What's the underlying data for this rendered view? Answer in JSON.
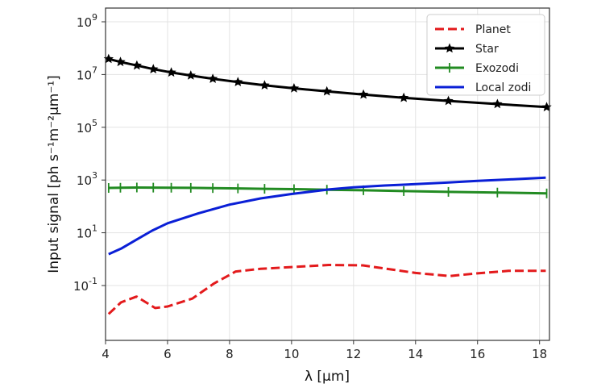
{
  "chart_data": {
    "type": "line",
    "title": "",
    "xlabel": "λ [μm]",
    "ylabel": "Input signal [ph s⁻¹m⁻²μm⁻¹]",
    "xlim": [
      4,
      18.32
    ],
    "ylim_log10": [
      -3.08,
      9.52
    ],
    "yscale": "log",
    "grid": true,
    "legend_position": "top-right",
    "x_ticks": [
      "4",
      "6",
      "8",
      "10",
      "12",
      "14",
      "16",
      "18"
    ],
    "x_tick_values": [
      4,
      6,
      8,
      10,
      12,
      14,
      16,
      18
    ],
    "y_tick_exponents": [
      "9",
      "7",
      "5",
      "3",
      "1",
      "-1"
    ],
    "y_tick_base": "10",
    "series": [
      {
        "name": "Planet",
        "color": "#e31a1c",
        "style": "dashed",
        "marker": "none",
        "x": [
          4.1,
          4.5,
          5.0,
          5.6,
          6.0,
          6.8,
          7.5,
          8.2,
          9.0,
          10.0,
          11.2,
          12.3,
          14.0,
          15.1,
          16.0,
          17.0,
          18.2
        ],
        "y": [
          0.0083,
          0.023,
          0.038,
          0.014,
          0.016,
          0.032,
          0.12,
          0.34,
          0.43,
          0.5,
          0.6,
          0.58,
          0.3,
          0.23,
          0.29,
          0.36,
          0.36
        ]
      },
      {
        "name": "Star",
        "color": "#000000",
        "style": "solid",
        "marker": "star",
        "x": [
          4.1,
          4.48,
          5.01,
          5.54,
          6.12,
          6.75,
          7.46,
          8.27,
          9.13,
          10.08,
          11.14,
          12.32,
          13.62,
          15.06,
          16.64,
          18.23
        ],
        "y": [
          39000000.0,
          30000000.0,
          22000000.0,
          16000000.0,
          12000000.0,
          9200000.0,
          6900000.0,
          5200000.0,
          3900000.0,
          3000000.0,
          2300000.0,
          1740000.0,
          1310000.0,
          1000000.0,
          760000.0,
          580000.0
        ]
      },
      {
        "name": "Exozodi",
        "color": "#228b22",
        "style": "solid",
        "marker": "vtick",
        "x": [
          4.1,
          4.48,
          5.01,
          5.54,
          6.12,
          6.75,
          7.46,
          8.27,
          9.13,
          10.08,
          11.14,
          12.32,
          13.62,
          15.06,
          16.64,
          18.23
        ],
        "y": [
          500,
          510,
          520,
          515,
          510,
          505,
          495,
          480,
          465,
          450,
          430,
          410,
          380,
          355,
          335,
          310
        ]
      },
      {
        "name": "Local zodi",
        "color": "#0a1fd6",
        "style": "solid",
        "marker": "none",
        "x": [
          4.1,
          4.5,
          5.0,
          5.5,
          6.0,
          7.0,
          8.0,
          9.0,
          10.0,
          11.2,
          12.0,
          13.0,
          14.0,
          15.0,
          16.0,
          17.0,
          18.2
        ],
        "y": [
          1.55,
          2.5,
          5.5,
          12,
          23,
          55,
          117,
          200,
          295,
          440,
          530,
          620,
          700,
          800,
          930,
          1050,
          1230
        ]
      }
    ]
  }
}
